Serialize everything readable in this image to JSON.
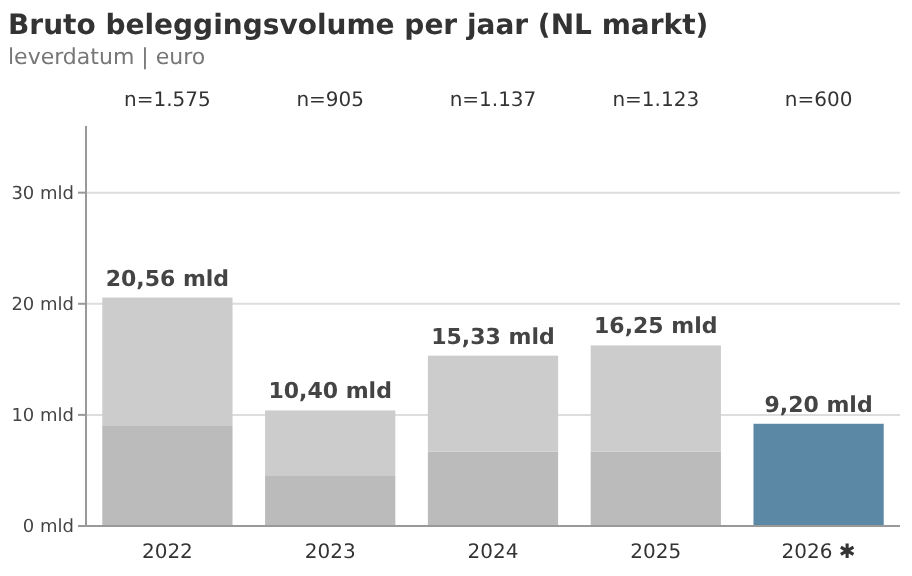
{
  "chart_data": {
    "type": "bar",
    "title": "Bruto beleggingsvolume per jaar (NL markt)",
    "subtitle": "leverdatum | euro",
    "categories": [
      "2022",
      "2023",
      "2024",
      "2025",
      "2026 ✱"
    ],
    "stacked": true,
    "series": [
      {
        "color": "#bbbbbb",
        "values": [
          9.0,
          4.5,
          6.7,
          6.7,
          null
        ]
      },
      {
        "color": "#cccccc",
        "values": [
          11.56,
          5.9,
          8.63,
          9.55,
          null
        ]
      },
      {
        "color": "#5a88a5",
        "values": [
          null,
          null,
          null,
          null,
          9.2
        ]
      }
    ],
    "totals": [
      "20,56 mld",
      "10,40 mld",
      "15,33 mld",
      "16,25 mld",
      "9,20 mld"
    ],
    "annotations": [
      "n=1.575",
      "n=905",
      "n=1.137",
      "n=1.123",
      "n=600"
    ],
    "ylim": [
      0,
      36
    ],
    "yticks": [
      {
        "value": 0,
        "label": "0 mld"
      },
      {
        "value": 10,
        "label": "10 mld"
      },
      {
        "value": 20,
        "label": "20 mld"
      },
      {
        "value": 30,
        "label": "30 mld"
      }
    ],
    "grid": "y"
  }
}
